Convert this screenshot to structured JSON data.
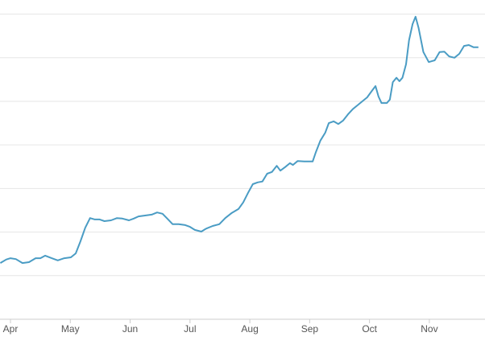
{
  "chart_data": {
    "type": "line",
    "x": [
      -0.17,
      -0.07,
      0,
      0.09,
      0.2,
      0.31,
      0.42,
      0.5,
      0.58,
      0.69,
      0.79,
      0.9,
      1.01,
      1.09,
      1.17,
      1.25,
      1.33,
      1.41,
      1.49,
      1.57,
      1.68,
      1.78,
      1.87,
      1.98,
      2.06,
      2.14,
      2.25,
      2.36,
      2.45,
      2.54,
      2.62,
      2.71,
      2.81,
      2.92,
      3,
      3.08,
      3.19,
      3.27,
      3.38,
      3.49,
      3.59,
      3.7,
      3.81,
      3.89,
      3.97,
      4.05,
      4.13,
      4.21,
      4.29,
      4.37,
      4.45,
      4.51,
      4.59,
      4.67,
      4.72,
      4.8,
      4.91,
      5.05,
      5.1,
      5.18,
      5.26,
      5.32,
      5.4,
      5.48,
      5.56,
      5.64,
      5.72,
      5.8,
      5.88,
      5.96,
      6.04,
      6.1,
      6.15,
      6.2,
      6.29,
      6.34,
      6.39,
      6.45,
      6.5,
      6.55,
      6.61,
      6.66,
      6.72,
      6.77,
      6.82,
      6.9,
      6.99,
      7.04,
      7.09,
      7.17,
      7.25,
      7.33,
      7.42,
      7.5,
      7.58,
      7.66,
      7.74,
      7.82
    ],
    "series": [
      {
        "color": "#4a9cc4",
        "values": [
          1.29,
          1.37,
          1.4,
          1.38,
          1.29,
          1.31,
          1.4,
          1.4,
          1.46,
          1.4,
          1.35,
          1.4,
          1.42,
          1.51,
          1.79,
          2.1,
          2.32,
          2.29,
          2.29,
          2.25,
          2.27,
          2.32,
          2.31,
          2.27,
          2.31,
          2.36,
          2.38,
          2.4,
          2.45,
          2.42,
          2.31,
          2.18,
          2.18,
          2.16,
          2.12,
          2.05,
          2.01,
          2.08,
          2.14,
          2.18,
          2.32,
          2.44,
          2.53,
          2.68,
          2.9,
          3.1,
          3.14,
          3.16,
          3.34,
          3.38,
          3.52,
          3.41,
          3.49,
          3.58,
          3.54,
          3.63,
          3.62,
          3.62,
          3.82,
          4.1,
          4.28,
          4.5,
          4.54,
          4.48,
          4.56,
          4.7,
          4.82,
          4.91,
          5,
          5.09,
          5.24,
          5.35,
          5.11,
          4.96,
          4.96,
          5.04,
          5.44,
          5.54,
          5.46,
          5.54,
          5.85,
          6.4,
          6.77,
          6.94,
          6.68,
          6.13,
          5.9,
          5.92,
          5.94,
          6.13,
          6.14,
          6.03,
          6,
          6.09,
          6.27,
          6.29,
          6.24,
          6.24
        ]
      }
    ],
    "xlim": [
      -0.175,
      7.93
    ],
    "xticks": [
      {
        "value": 0,
        "label": "Apr"
      },
      {
        "value": 1,
        "label": "May"
      },
      {
        "value": 2,
        "label": "Jun"
      },
      {
        "value": 3,
        "label": "Jul"
      },
      {
        "value": 4,
        "label": "Aug"
      },
      {
        "value": 5,
        "label": "Sep"
      },
      {
        "value": 6,
        "label": "Oct"
      },
      {
        "value": 7,
        "label": "Nov"
      }
    ],
    "ylim": [
      0,
      7.3
    ],
    "yticks": [
      0,
      1,
      2,
      3,
      4,
      5,
      6,
      7
    ],
    "grid": true
  }
}
